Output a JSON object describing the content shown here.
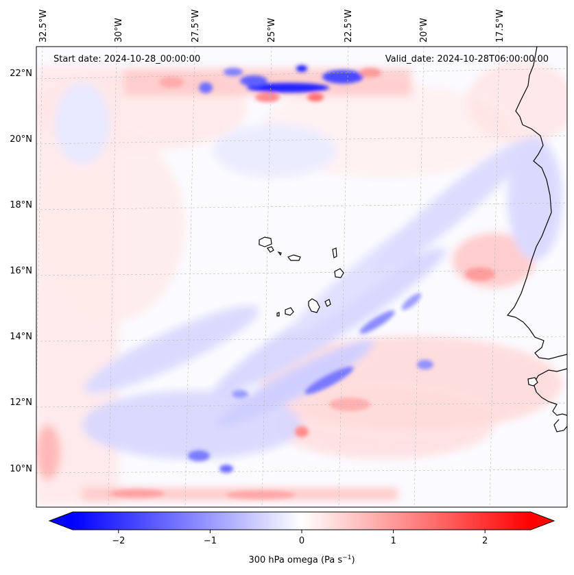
{
  "header": {
    "start_date": "Start date: 2024-10-28_00:00:00",
    "valid_date": "Valid_date: 2024-10-28T06:00:00.00"
  },
  "map": {
    "lon_labels": [
      "32.5°W",
      "30°W",
      "27.5°W",
      "25°W",
      "22.5°W",
      "20°W",
      "17.5°W"
    ],
    "lat_labels": [
      "22°N",
      "20°N",
      "18°N",
      "16°N",
      "14°N",
      "12°N",
      "10°N"
    ],
    "field_colors": {
      "negative": "#0000ff",
      "zero": "#ffffff",
      "positive": "#ff0000"
    }
  },
  "colorbar": {
    "tick_labels": [
      "−2",
      "−1",
      "0",
      "1",
      "2"
    ],
    "tick_values": [
      -2,
      -1,
      0,
      1,
      2
    ],
    "range": [
      -2.5,
      2.5
    ],
    "label_main": "300 hPa omega (Pa s",
    "label_exp": "−1",
    "label_end": ")"
  }
}
